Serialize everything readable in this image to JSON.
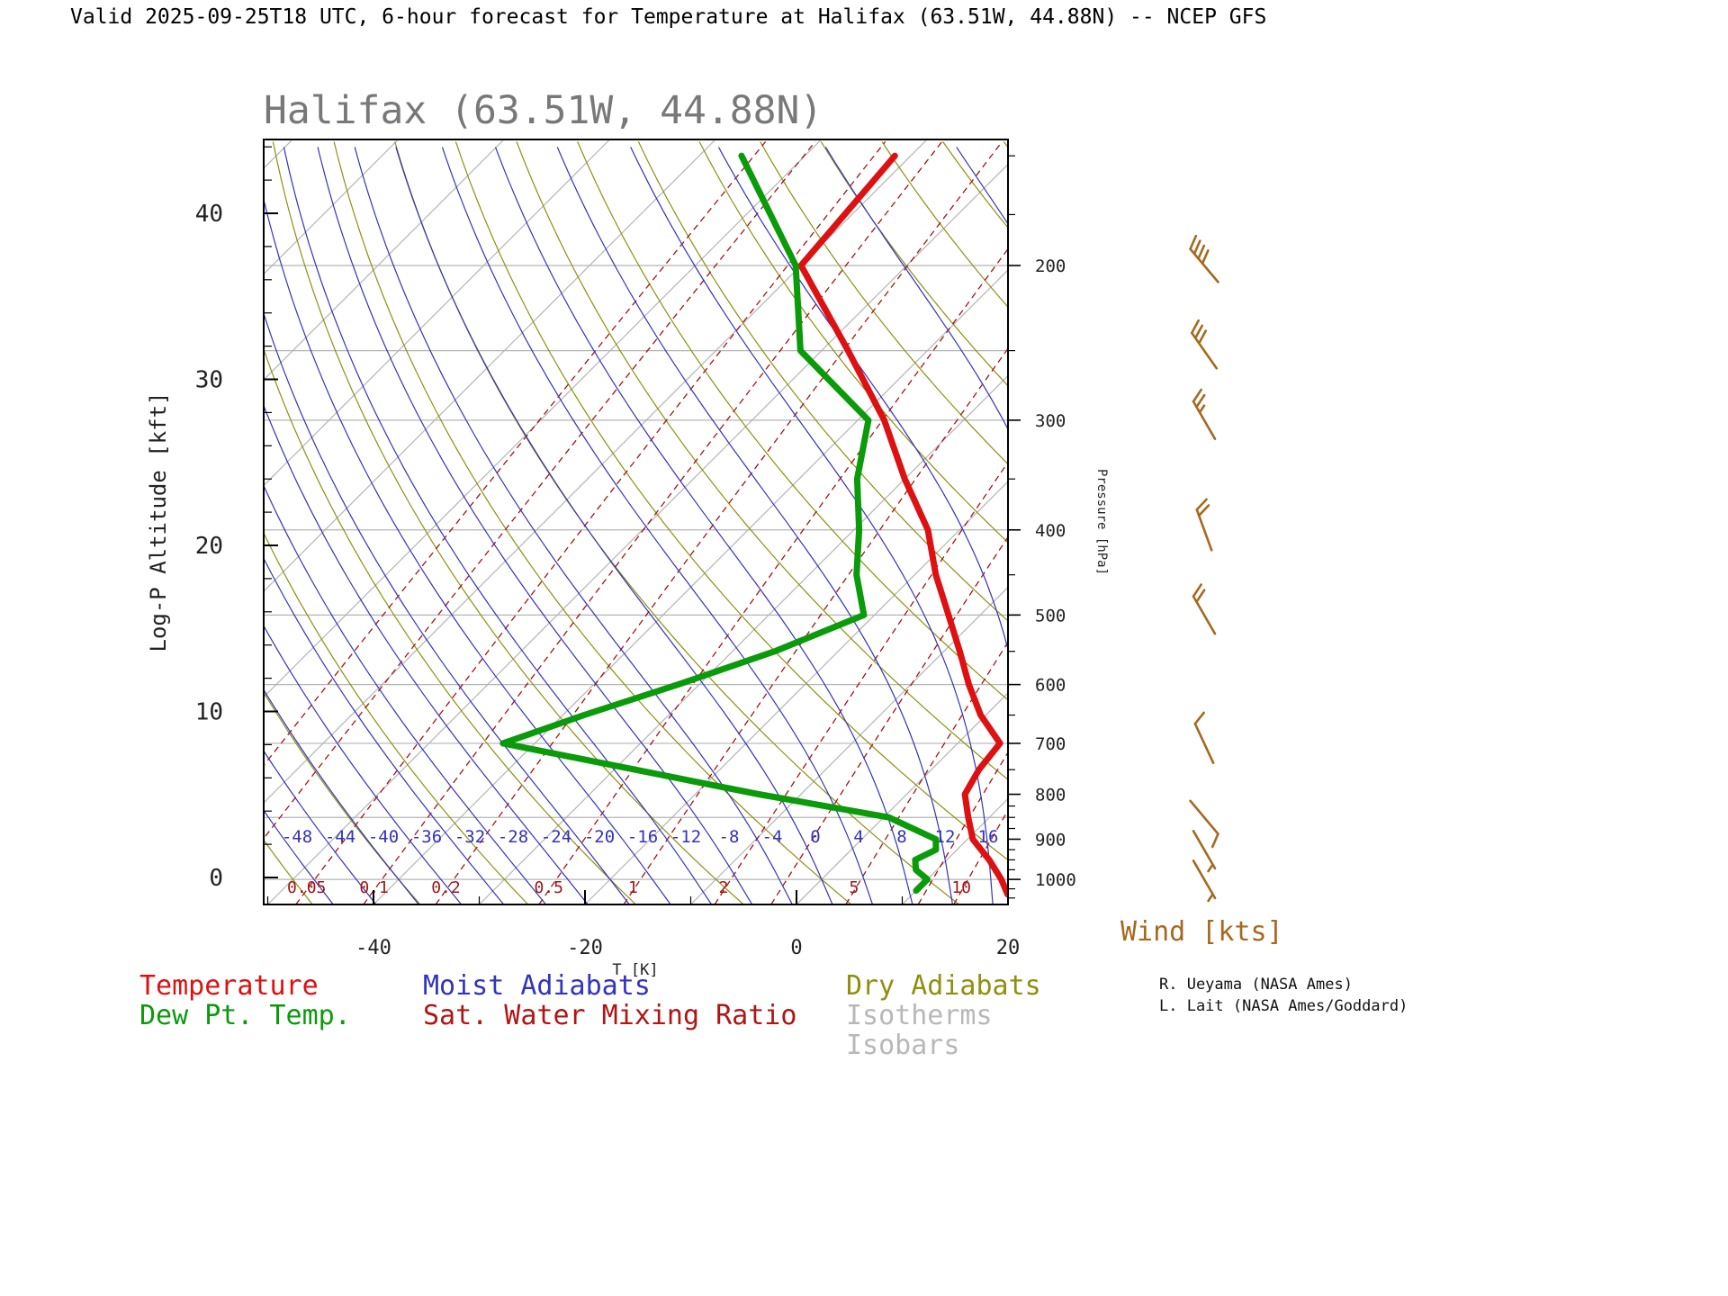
{
  "header": {
    "title": "Valid 2025-09-25T18 UTC, 6-hour forecast for Temperature at Halifax (63.51W, 44.88N) -- NCEP GFS"
  },
  "chart_data": {
    "type": "line",
    "variant": "skew-t-log-p-sounding",
    "title": "Halifax (63.51W, 44.88N)",
    "x_axis": {
      "label": "T [K]",
      "ticks": [
        -40,
        -20,
        0,
        20
      ]
    },
    "y_axis_left": {
      "label": "Log-P Altitude [kft]",
      "ticks": [
        0,
        10,
        20,
        30,
        40
      ]
    },
    "y_axis_right": {
      "label": "Pressure [hPa]",
      "ticks": [
        200,
        300,
        400,
        500,
        600,
        700,
        800,
        900,
        1000
      ]
    },
    "series": [
      {
        "name": "Temperature",
        "color": "#dd1111",
        "points_p_hpa_t_c": [
          [
            1040,
            19
          ],
          [
            1000,
            17
          ],
          [
            950,
            14
          ],
          [
            900,
            10.5
          ],
          [
            850,
            8
          ],
          [
            800,
            5.5
          ],
          [
            750,
            4.5
          ],
          [
            700,
            4
          ],
          [
            650,
            -0.5
          ],
          [
            600,
            -4.5
          ],
          [
            550,
            -8.5
          ],
          [
            500,
            -13
          ],
          [
            450,
            -18
          ],
          [
            400,
            -23
          ],
          [
            350,
            -30
          ],
          [
            300,
            -37.5
          ],
          [
            250,
            -47.5
          ],
          [
            200,
            -60
          ],
          [
            150,
            -61.5
          ]
        ]
      },
      {
        "name": "Dew Pt. Temp.",
        "color": "#0a9a0a",
        "points_p_hpa_t_c": [
          [
            1030,
            10
          ],
          [
            1000,
            10
          ],
          [
            975,
            8
          ],
          [
            950,
            7
          ],
          [
            925,
            8
          ],
          [
            900,
            7
          ],
          [
            850,
            0.5
          ],
          [
            800,
            -14
          ],
          [
            750,
            -28
          ],
          [
            700,
            -43
          ],
          [
            650,
            -38
          ],
          [
            600,
            -32
          ],
          [
            550,
            -26
          ],
          [
            500,
            -21
          ],
          [
            450,
            -25.5
          ],
          [
            400,
            -29.5
          ],
          [
            350,
            -34.5
          ],
          [
            300,
            -39
          ],
          [
            250,
            -52
          ],
          [
            200,
            -60.5
          ],
          [
            150,
            -76
          ]
        ]
      }
    ],
    "background_lines": {
      "isobars_hpa": [
        200,
        250,
        300,
        400,
        500,
        600,
        700,
        850,
        1000
      ],
      "isotherms_c": {
        "start": -130,
        "end": 40,
        "step": 10
      },
      "dry_adiabats_theta_c": {
        "start": -60,
        "end": 110,
        "step": 10
      },
      "moist_adiabats_t0_c": {
        "start": -48,
        "end": 28,
        "step": 4
      },
      "mixing_ratio_g_kg": [
        0.01,
        0.02,
        0.05,
        0.1,
        0.2,
        0.5,
        1,
        2,
        3,
        5,
        8,
        10,
        15,
        20,
        30
      ]
    },
    "inplot_labels": {
      "moist_adiabat_values": [
        "-48",
        "-44",
        "-40",
        "-36",
        "-32",
        "-28",
        "-24",
        "-20",
        "-16",
        "-12",
        "-8",
        "-4",
        "0",
        "4",
        "8",
        "12",
        "16"
      ],
      "mixing_ratio_values": [
        "0.05",
        "0.1",
        "0.2",
        "0.5",
        "1",
        "2",
        "5",
        "10"
      ]
    },
    "colors": {
      "temperature": "#dd1111",
      "dew_point": "#0a9a0a",
      "moist_adiabat": "#3333bb",
      "mixing_ratio": "#a01515",
      "dry_adiabat": "#8f8f10",
      "isotherm": "#b5b5b5",
      "isobar": "#b5b5b5",
      "frame": "#000000",
      "wind": "#a5691f"
    },
    "legend": [
      {
        "label": "Temperature",
        "color": "#dd1111"
      },
      {
        "label": "Dew Pt. Temp.",
        "color": "#0a9a0a"
      },
      {
        "label": "Moist Adiabats",
        "color": "#3333bb"
      },
      {
        "label": "Sat. Water Mixing Ratio",
        "color": "#b01515"
      },
      {
        "label": "Dry Adiabats",
        "color": "#8f8f10"
      },
      {
        "label": "Isotherms",
        "color": "#b8b8b8"
      },
      {
        "label": "Isobars",
        "color": "#b8b8b8"
      }
    ],
    "wind": {
      "label": "Wind [kts]",
      "color": "#a5691f",
      "barbs": [
        {
          "pressure": 200,
          "speed": 40,
          "rotation": -40
        },
        {
          "pressure": 250,
          "speed": 30,
          "rotation": -35
        },
        {
          "pressure": 300,
          "speed": 25,
          "rotation": -30
        },
        {
          "pressure": 400,
          "speed": 20,
          "rotation": -20
        },
        {
          "pressure": 500,
          "speed": 20,
          "rotation": -30
        },
        {
          "pressure": 700,
          "speed": 10,
          "rotation": -25
        },
        {
          "pressure": 850,
          "speed": 10,
          "rotation": 140
        },
        {
          "pressure": 925,
          "speed": 5,
          "rotation": 150
        },
        {
          "pressure": 1000,
          "speed": 5,
          "rotation": 150
        }
      ]
    },
    "credits": [
      "R. Ueyama (NASA Ames)",
      "L. Lait (NASA Ames/Goddard)"
    ]
  }
}
